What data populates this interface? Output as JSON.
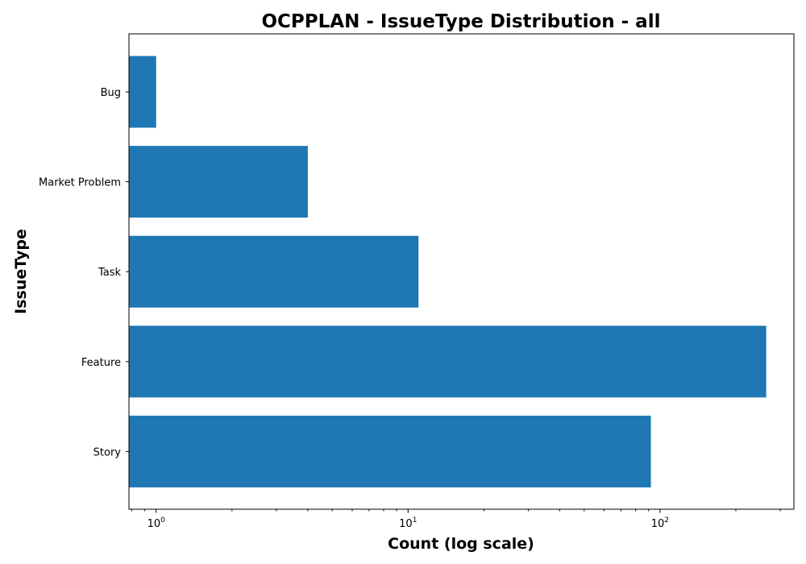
{
  "chart_data": {
    "type": "bar",
    "orientation": "horizontal",
    "title": "OCPPLAN - IssueType Distribution - all",
    "xlabel": "Count (log scale)",
    "ylabel": "IssueType",
    "x_scale": "log",
    "xlim": [
      0.78,
      340
    ],
    "x_ticks": [
      {
        "value": 1,
        "base": "10",
        "exp": "0"
      },
      {
        "value": 10,
        "base": "10",
        "exp": "1"
      },
      {
        "value": 100,
        "base": "10",
        "exp": "2"
      }
    ],
    "categories": [
      "Bug",
      "Market Problem",
      "Task",
      "Feature",
      "Story"
    ],
    "values": [
      1,
      4,
      11,
      264,
      92
    ],
    "color": "#1f77b4",
    "grid": false,
    "legend": "none"
  }
}
